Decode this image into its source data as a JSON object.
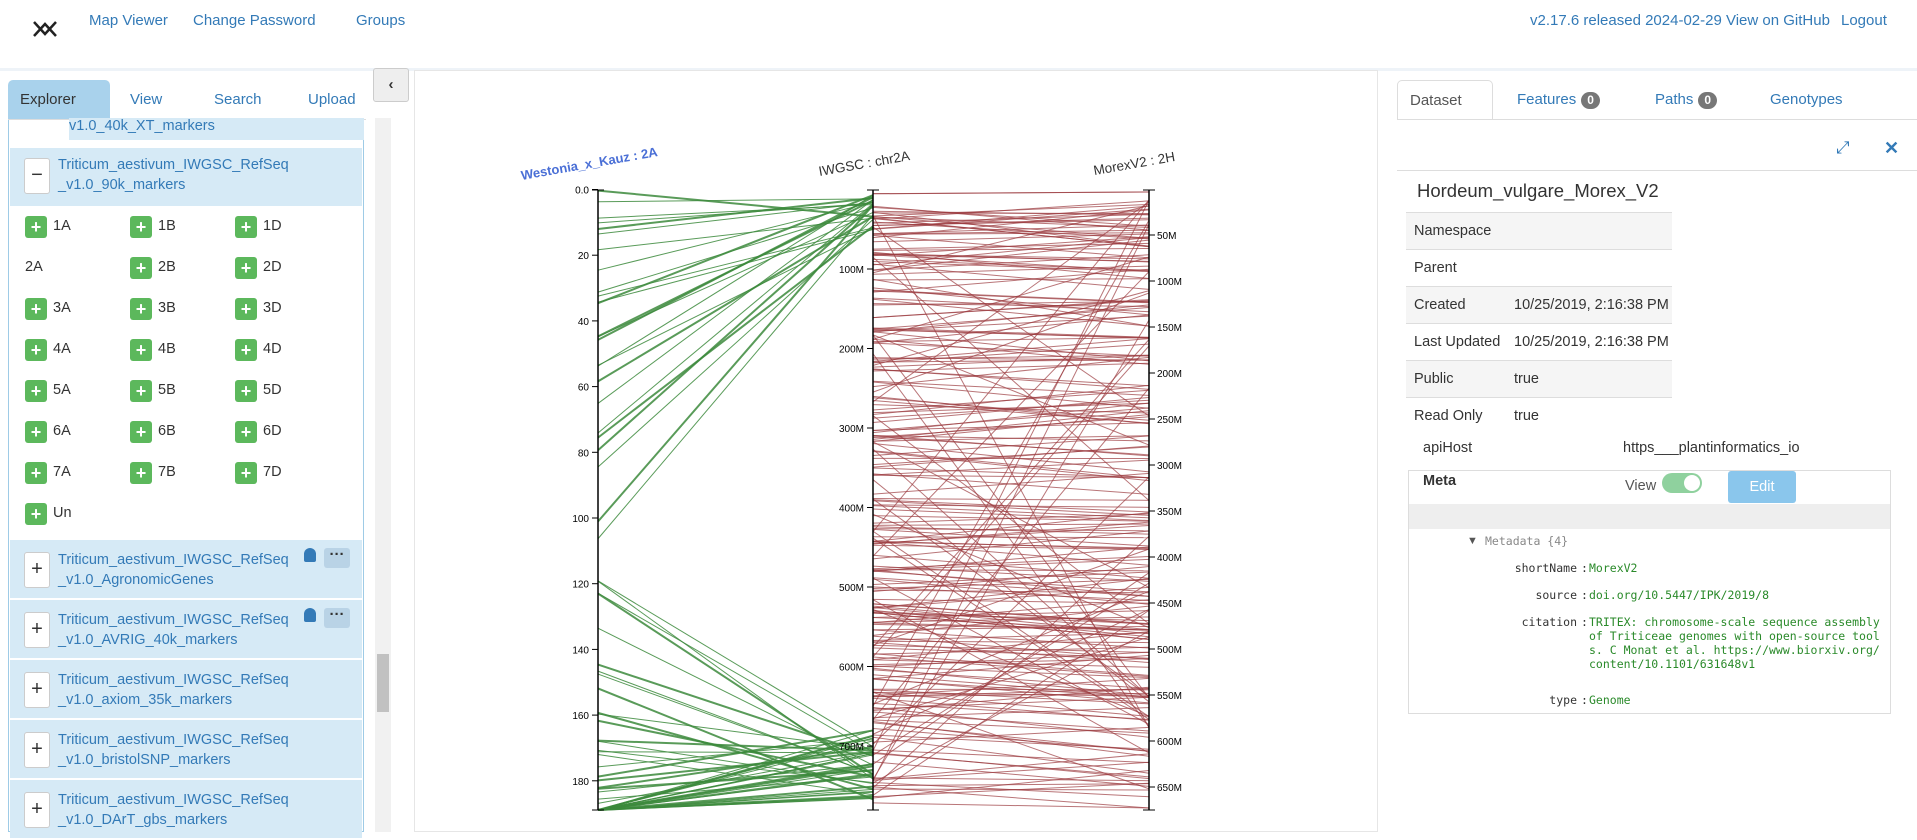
{
  "nav": {
    "links": [
      "Map Viewer",
      "Change Password",
      "Groups"
    ],
    "release": "v2.17.6 released 2024-02-29 View on GitHub",
    "logout": "Logout"
  },
  "left": {
    "tabs": [
      "Explorer",
      "View",
      "Search",
      "Upload"
    ],
    "partial": "v1.0_40k_XT_markers",
    "expanded": {
      "name": "Triticum_aestivum_IWGSC_RefSeq_v1.0_90k_markers",
      "chromosomes": [
        "1A",
        "1B",
        "1D",
        "2A",
        "2B",
        "2D",
        "3A",
        "3B",
        "3D",
        "4A",
        "4B",
        "4D",
        "5A",
        "5B",
        "5D",
        "6A",
        "6B",
        "6D",
        "7A",
        "7B",
        "7D",
        "Un"
      ]
    },
    "datasets": [
      "Triticum_aestivum_IWGSC_RefSeq_v1.0_AgronomicGenes",
      "Triticum_aestivum_IWGSC_RefSeq_v1.0_AVRIG_40k_markers",
      "Triticum_aestivum_IWGSC_RefSeq_v1.0_axiom_35k_markers",
      "Triticum_aestivum_IWGSC_RefSeq_v1.0_bristolSNP_markers",
      "Triticum_aestivum_IWGSC_RefSeq_v1.0_DArT_gbs_markers"
    ]
  },
  "map": {
    "axes": [
      {
        "title": "Westonia_x_Kauz : 2A",
        "ticks": [
          "0.0",
          "20",
          "40",
          "60",
          "80",
          "100",
          "120",
          "140",
          "160",
          "180"
        ]
      },
      {
        "title": "IWGSC : chr2A",
        "ticks": [
          "100M",
          "200M",
          "300M",
          "400M",
          "500M",
          "600M",
          "700M"
        ]
      },
      {
        "title": "MorexV2 : 2H",
        "ticks": [
          "50M",
          "100M",
          "150M",
          "200M",
          "250M",
          "300M",
          "350M",
          "400M",
          "450M",
          "500M",
          "550M",
          "600M",
          "650M"
        ]
      }
    ]
  },
  "right": {
    "tabs": [
      {
        "label": "Dataset"
      },
      {
        "label": "Features",
        "count": 0
      },
      {
        "label": "Paths",
        "count": 0
      },
      {
        "label": "Genotypes"
      }
    ],
    "title": "Hordeum_vulgare_Morex_V2",
    "properties": [
      [
        "Namespace",
        ""
      ],
      [
        "Parent",
        ""
      ],
      [
        "Created",
        "10/25/2019, 2:16:38 PM"
      ],
      [
        "Last Updated",
        "10/25/2019, 2:16:38 PM"
      ],
      [
        "Public",
        "true"
      ],
      [
        "Read Only",
        "true"
      ]
    ],
    "apiHost": [
      "apiHost",
      "https___plantinformatics_io"
    ],
    "meta": {
      "title": "Meta",
      "view": "View",
      "edit": "Edit",
      "root": "Metadata {4}",
      "entries": [
        [
          "shortName",
          "MorexV2"
        ],
        [
          "source",
          "doi.org/10.5447/IPK/2019/8"
        ],
        [
          "citation",
          "TRITEX: chromosome-scale sequence assembly of Triticeae genomes with open-source tools. C Monat et al. https://www.biorxiv.org/content/10.1101/631648v1"
        ],
        [
          "type",
          "Genome"
        ]
      ]
    }
  }
}
